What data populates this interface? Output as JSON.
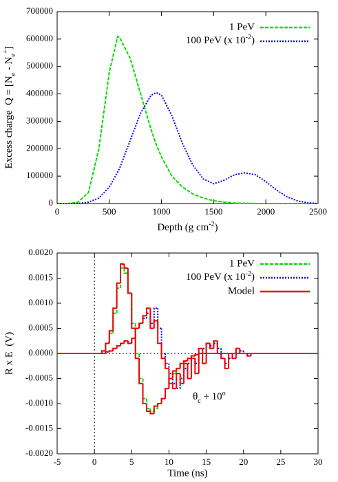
{
  "chart_data": [
    {
      "type": "line",
      "xlabel": [
        "Depth (g cm",
        "-2",
        ")"
      ],
      "ylabel": [
        "Excess charge  Q = [N",
        "e",
        " - N",
        "e",
        "+",
        "]"
      ],
      "x": [
        0,
        100,
        200,
        300,
        400,
        500,
        580,
        600,
        700,
        800,
        900,
        950,
        1000,
        1100,
        1200,
        1300,
        1400,
        1500,
        1600,
        1700,
        1800,
        1900,
        2000,
        2100,
        2200,
        2300,
        2400,
        2500
      ],
      "xlim": [
        0,
        2500
      ],
      "xticks": [
        0,
        500,
        1000,
        1500,
        2000,
        2500
      ],
      "ylim": [
        0,
        700000
      ],
      "yticks": [
        0,
        100000,
        200000,
        300000,
        400000,
        500000,
        600000,
        700000
      ],
      "legend": "upper right",
      "series": [
        {
          "name": "1 PeV",
          "color": "#00dd00",
          "style": "dashed",
          "values": [
            0,
            0,
            5000,
            40000,
            200000,
            480000,
            610000,
            605000,
            530000,
            400000,
            270000,
            215000,
            170000,
            100000,
            60000,
            35000,
            20000,
            10000,
            5000,
            2000,
            1000,
            0,
            0,
            0,
            0,
            0,
            0,
            0
          ]
        },
        {
          "name": [
            "100 PeV (x 10",
            "-2",
            ")"
          ],
          "color": "#0000ee",
          "style": "dotted",
          "values": [
            0,
            0,
            0,
            5000,
            20000,
            60000,
            115000,
            130000,
            230000,
            330000,
            395000,
            405000,
            395000,
            320000,
            220000,
            140000,
            90000,
            72000,
            85000,
            105000,
            112000,
            105000,
            80000,
            50000,
            25000,
            10000,
            3000,
            0
          ]
        }
      ]
    },
    {
      "type": "step",
      "xlabel": "Time (ns)",
      "ylabel": "R x E  (V)",
      "annotation": [
        "θ",
        "c",
        " + 10",
        "o"
      ],
      "x": [
        -5,
        0,
        0.5,
        1,
        1.5,
        2,
        2.5,
        3,
        3.5,
        4,
        4.5,
        5,
        5.5,
        6,
        6.5,
        7,
        7.5,
        8,
        8.5,
        9,
        9.5,
        10,
        10.5,
        11,
        11.5,
        12,
        12.5,
        13,
        13.5,
        14,
        14.5,
        15,
        15.5,
        16,
        16.5,
        17,
        17.5,
        18,
        18.5,
        19,
        19.5,
        20,
        20.5,
        21,
        21.5,
        22,
        22.5,
        23,
        23.5,
        24,
        24.5,
        25,
        30
      ],
      "xlim": [
        -5,
        30
      ],
      "xticks": [
        -5,
        0,
        5,
        10,
        15,
        20,
        25,
        30
      ],
      "ylim": [
        -0.002,
        0.002
      ],
      "yticks": [
        {
          "value": -0.002,
          "label": "-0.0020"
        },
        {
          "value": -0.0015,
          "label": "-0.0015"
        },
        {
          "value": -0.001,
          "label": "-0.0010"
        },
        {
          "value": -0.0005,
          "label": "-0.0005"
        },
        {
          "value": 0,
          "label": "0.0000"
        },
        {
          "value": 0.0005,
          "label": "0.0005"
        },
        {
          "value": 0.001,
          "label": "0.0010"
        },
        {
          "value": 0.0015,
          "label": "0.0015"
        },
        {
          "value": 0.002,
          "label": "0.0020"
        }
      ],
      "legend": "upper right",
      "series": [
        {
          "name": "1 PeV",
          "color": "#00dd00",
          "style": "dashed",
          "values": [
            0,
            0,
            0,
            5e-05,
            0.0002,
            0.0004,
            0.0008,
            0.0013,
            0.0017,
            0.0016,
            0.0012,
            0.0006,
            0.0,
            -0.0005,
            -0.0009,
            -0.0011,
            -0.00115,
            -0.0011,
            -0.001,
            -0.0009,
            -0.0007,
            -0.0005,
            -0.0004,
            -0.0003,
            -0.0002,
            -0.00015,
            -0.0001,
            -5e-05,
            -3e-05,
            0,
            0,
            0,
            0,
            0,
            0,
            0,
            0,
            0,
            0,
            0,
            0,
            0,
            0,
            0,
            0,
            0,
            0,
            0,
            0,
            0,
            0,
            0,
            0
          ]
        },
        {
          "name": [
            "100 PeV (x 10",
            "-2",
            ")"
          ],
          "color": "#0000ee",
          "style": "dotted",
          "values": [
            0,
            0,
            0,
            0,
            3e-05,
            5e-05,
            0.0001,
            0.00015,
            0.0002,
            0.00025,
            0.0002,
            0.0003,
            0.0005,
            0.0006,
            0.0007,
            0.0008,
            0.0006,
            0.0009,
            0.0005,
            0.0,
            -0.0002,
            -0.0004,
            -0.0006,
            -0.0007,
            -0.0005,
            -0.0003,
            -0.0002,
            -0.0001,
            -0.0002,
            0.0,
            0.0001,
            0.0002,
            0.00015,
            0.0002,
            0.0001,
            -0.0001,
            -0.0002,
            -0.0001,
            0,
            0.0001,
            5e-05,
            0,
            -5e-05,
            0,
            0,
            0,
            0,
            0,
            0,
            0,
            0,
            0,
            0
          ]
        },
        {
          "name": "Model",
          "color": "#ee0000",
          "style": "solid",
          "values": [
            0,
            0,
            0,
            5e-05,
            0.0002,
            0.00045,
            0.0009,
            0.0014,
            0.00178,
            0.0017,
            0.0012,
            0.0005,
            -0.0001,
            -0.0006,
            -0.001,
            -0.00115,
            -0.0012,
            -0.00105,
            -0.001,
            -0.0009,
            -0.0007,
            -0.0005,
            -0.00035,
            -0.0003,
            -0.0002,
            -0.00015,
            -0.0001,
            -5e-05,
            -2e-05,
            0,
            0,
            0,
            0,
            0,
            0,
            0,
            0,
            0,
            0,
            0,
            0,
            0,
            0,
            0,
            0,
            0,
            0,
            0,
            0,
            0,
            0,
            0,
            0
          ]
        },
        {
          "color": "#ee0000",
          "style": "solid",
          "values": [
            0,
            0,
            0,
            0,
            3e-05,
            5e-05,
            0.0001,
            0.00015,
            0.0002,
            0.00025,
            0.0002,
            0.0003,
            0.0005,
            0.0006,
            0.00075,
            0.0009,
            0.0005,
            0.00065,
            0.0002,
            -0.0001,
            -0.0003,
            -0.0006,
            -0.0007,
            -0.0004,
            -0.0006,
            -0.0002,
            -0.0005,
            -0.0001,
            -0.0004,
            0.0001,
            -0.0002,
            0.0002,
            0.0001,
            0.00025,
            0.0,
            -0.0001,
            -0.0003,
            0,
            -0.0001,
            0.0001,
            0,
            0,
            -5e-05,
            0,
            0,
            0,
            0,
            0,
            0,
            0,
            0,
            0,
            0
          ]
        }
      ]
    }
  ]
}
